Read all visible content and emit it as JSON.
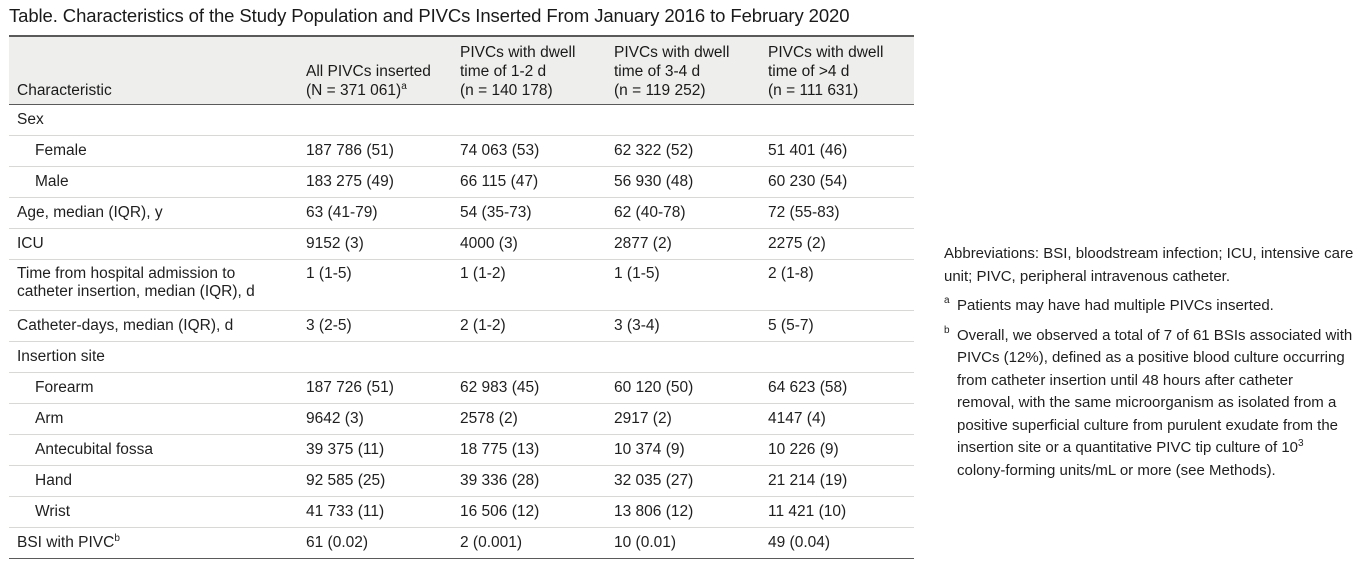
{
  "title": "Table. Characteristics of the Study Population and PIVCs Inserted From January 2016 to February 2020",
  "header": {
    "c0": "Characteristic",
    "c1_line1": "All PIVCs inserted",
    "c1_line2": "(N = 371 061)",
    "c1_sup": "a",
    "c2_line1": "PIVCs with dwell",
    "c2_line2": "time of 1-2 d",
    "c2_line3": "(n = 140 178)",
    "c3_line1": "PIVCs with dwell",
    "c3_line2": "time of 3-4 d",
    "c3_line3": "(n = 119 252)",
    "c4_line1": "PIVCs with dwell",
    "c4_line2": "time of >4 d",
    "c4_line3": "(n = 111 631)"
  },
  "rows": [
    {
      "label": "Sex",
      "values": [
        "",
        "",
        "",
        ""
      ]
    },
    {
      "label": "Female",
      "values": [
        "187 786 (51)",
        "74 063 (53)",
        "62 322 (52)",
        "51 401 (46)"
      ]
    },
    {
      "label": "Male",
      "values": [
        "183 275 (49)",
        "66 115 (47)",
        "56 930 (48)",
        "60 230 (54)"
      ]
    },
    {
      "label": "Age, median (IQR), y",
      "values": [
        "63 (41-79)",
        "54 (35-73)",
        "62 (40-78)",
        "72 (55-83)"
      ]
    },
    {
      "label": "ICU",
      "values": [
        "9152 (3)",
        "4000 (3)",
        "2877 (2)",
        "2275 (2)"
      ]
    },
    {
      "label_line1": "Time from hospital admission to",
      "label_line2": "catheter insertion, median (IQR), d",
      "values": [
        "1 (1-5)",
        "1 (1-2)",
        "1 (1-5)",
        "2 (1-8)"
      ]
    },
    {
      "label": "Catheter-days, median (IQR), d",
      "values": [
        "3 (2-5)",
        "2 (1-2)",
        "3 (3-4)",
        "5 (5-7)"
      ]
    },
    {
      "label": "Insertion site",
      "values": [
        "",
        "",
        "",
        ""
      ]
    },
    {
      "label": "Forearm",
      "values": [
        "187 726 (51)",
        "62 983 (45)",
        "60 120 (50)",
        "64 623 (58)"
      ]
    },
    {
      "label": "Arm",
      "values": [
        "9642 (3)",
        "2578 (2)",
        "2917 (2)",
        "4147 (4)"
      ]
    },
    {
      "label": "Antecubital fossa",
      "values": [
        "39 375 (11)",
        "18 775 (13)",
        "10 374 (9)",
        "10 226 (9)"
      ]
    },
    {
      "label": "Hand",
      "values": [
        "92 585 (25)",
        "39 336 (28)",
        "32 035 (27)",
        "21 214 (19)"
      ]
    },
    {
      "label": "Wrist",
      "values": [
        "41 733 (11)",
        "16 506 (12)",
        "13 806 (12)",
        "11 421 (10)"
      ]
    },
    {
      "label": "BSI with PIVC",
      "label_sup": "b",
      "values": [
        "61 (0.02)",
        "2 (0.001)",
        "10 (0.01)",
        "49 (0.04)"
      ]
    }
  ],
  "notes": {
    "abbreviations": "Abbreviations: BSI, bloodstream infection; ICU, intensive care unit; PIVC, peripheral intravenous catheter.",
    "a_marker": "a",
    "a_text": "Patients may have had multiple PIVCs inserted.",
    "b_marker": "b",
    "b_text_part1": "Overall, we observed a total of 7 of 61 BSIs associated with PIVCs (12%), defined as a positive blood culture occurring from catheter insertion until 48 hours after catheter removal, with the same microorganism as isolated from a positive superficial culture from purulent exudate from the insertion site or a quantitative PIVC tip culture of 10",
    "b_exponent": "3",
    "b_text_part2": " colony-forming units/mL or more (see Methods)."
  }
}
